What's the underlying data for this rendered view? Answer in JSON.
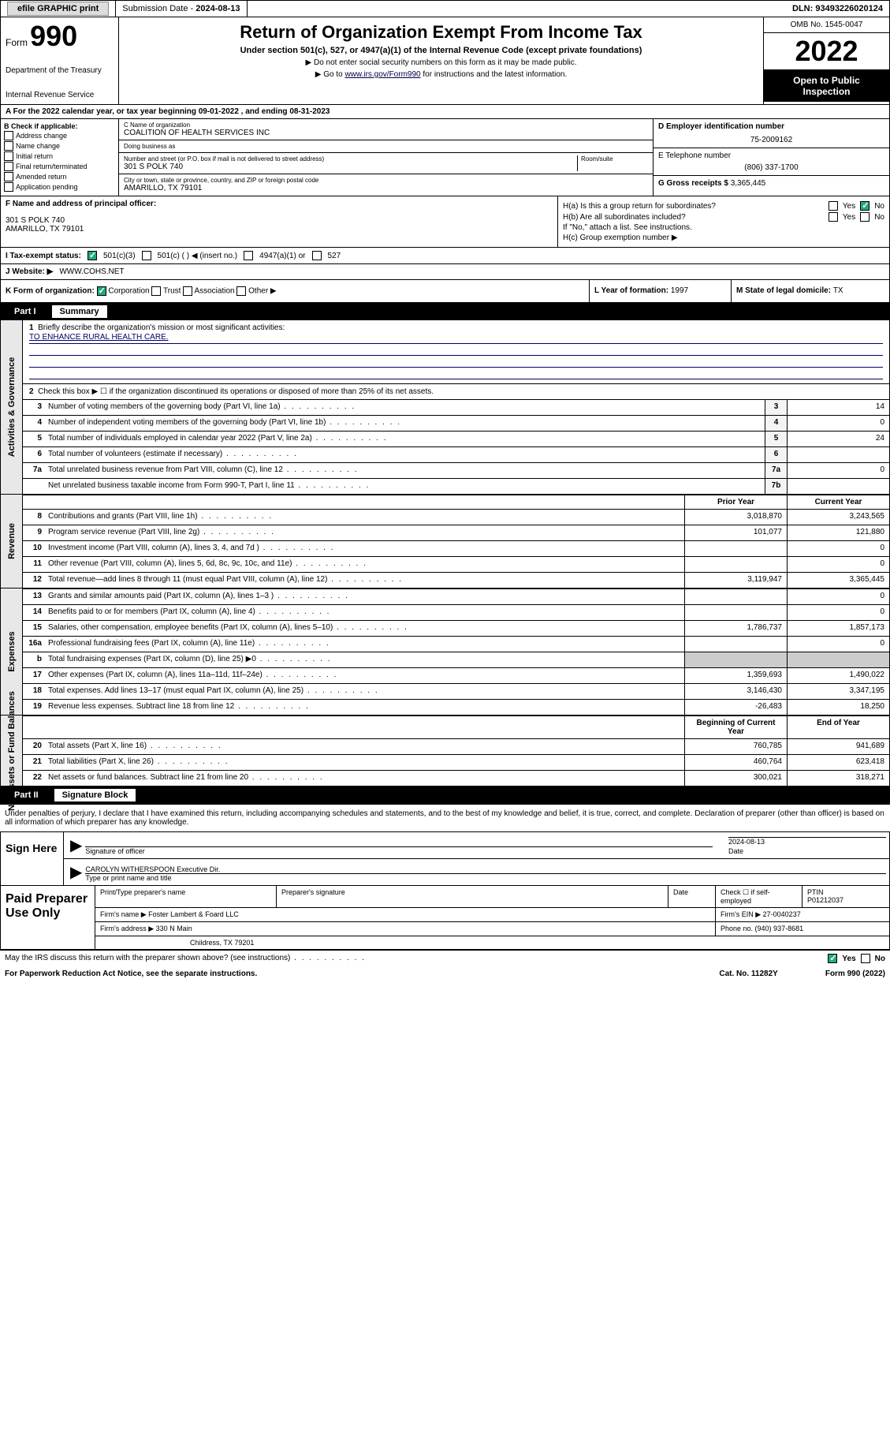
{
  "topbar": {
    "efile": "efile GRAPHIC print",
    "subdate_label": "Submission Date - ",
    "subdate": "2024-08-13",
    "dln_label": "DLN: ",
    "dln": "93493226020124"
  },
  "header": {
    "form_label": "Form",
    "form_no": "990",
    "dept": "Department of the Treasury",
    "irs": "Internal Revenue Service",
    "title": "Return of Organization Exempt From Income Tax",
    "sub": "Under section 501(c), 527, or 4947(a)(1) of the Internal Revenue Code (except private foundations)",
    "note1": "▶ Do not enter social security numbers on this form as it may be made public.",
    "note2_pre": "▶ Go to ",
    "note2_link": "www.irs.gov/Form990",
    "note2_post": " for instructions and the latest information.",
    "omb": "OMB No. 1545-0047",
    "year": "2022",
    "inspect": "Open to Public Inspection"
  },
  "period": {
    "text": "A For the 2022 calendar year, or tax year beginning 09-01-2022   , and ending 08-31-2023"
  },
  "boxB": {
    "label": "B Check if applicable:",
    "items": [
      "Address change",
      "Name change",
      "Initial return",
      "Final return/terminated",
      "Amended return",
      "Application pending"
    ]
  },
  "boxC": {
    "name_label": "C Name of organization",
    "name": "COALITION OF HEALTH SERVICES INC",
    "dba_label": "Doing business as",
    "addr_label": "Number and street (or P.O. box if mail is not delivered to street address)",
    "room_label": "Room/suite",
    "addr": "301 S POLK 740",
    "city_label": "City or town, state or province, country, and ZIP or foreign postal code",
    "city": "AMARILLO, TX  79101"
  },
  "boxD": {
    "label": "D Employer identification number",
    "value": "75-2009162"
  },
  "boxE": {
    "label": "E Telephone number",
    "value": "(806) 337-1700"
  },
  "boxG": {
    "label": "G Gross receipts $ ",
    "value": "3,365,445"
  },
  "boxF": {
    "label": "F  Name and address of principal officer:",
    "addr1": "301 S POLK 740",
    "addr2": "AMARILLO, TX  79101"
  },
  "boxH": {
    "ha": "H(a)  Is this a group return for subordinates?",
    "hb": "H(b)  Are all subordinates included?",
    "hb_note": "If \"No,\" attach a list. See instructions.",
    "hc": "H(c)  Group exemption number ▶",
    "yes": "Yes",
    "no": "No"
  },
  "rowI": {
    "label": "I   Tax-exempt status:",
    "opt1": "501(c)(3)",
    "opt2": "501(c) (  ) ◀ (insert no.)",
    "opt3": "4947(a)(1) or",
    "opt4": "527"
  },
  "rowJ": {
    "label": "J   Website: ▶",
    "value": "WWW.COHS.NET"
  },
  "rowK": {
    "label": "K Form of organization:",
    "opts": [
      "Corporation",
      "Trust",
      "Association",
      "Other ▶"
    ]
  },
  "rowL": {
    "label": "L Year of formation: ",
    "value": "1997"
  },
  "rowM": {
    "label": "M State of legal domicile: ",
    "value": "TX"
  },
  "partI": {
    "num": "Part I",
    "title": "Summary"
  },
  "summary": {
    "q1": "Briefly describe the organization's mission or most significant activities:",
    "mission": "TO ENHANCE RURAL HEALTH CARE.",
    "q2": "Check this box ▶ ☐  if the organization discontinued its operations or disposed of more than 25% of its net assets.",
    "rows_gov": [
      {
        "n": "3",
        "d": "Number of voting members of the governing body (Part VI, line 1a)",
        "box": "3",
        "v": "14"
      },
      {
        "n": "4",
        "d": "Number of independent voting members of the governing body (Part VI, line 1b)",
        "box": "4",
        "v": "0"
      },
      {
        "n": "5",
        "d": "Total number of individuals employed in calendar year 2022 (Part V, line 2a)",
        "box": "5",
        "v": "24"
      },
      {
        "n": "6",
        "d": "Total number of volunteers (estimate if necessary)",
        "box": "6",
        "v": ""
      },
      {
        "n": "7a",
        "d": "Total unrelated business revenue from Part VIII, column (C), line 12",
        "box": "7a",
        "v": "0"
      },
      {
        "n": "",
        "d": "Net unrelated business taxable income from Form 990-T, Part I, line 11",
        "box": "7b",
        "v": ""
      }
    ],
    "col_prior": "Prior Year",
    "col_current": "Current Year",
    "col_begin": "Beginning of Current Year",
    "col_end": "End of Year",
    "rows_rev": [
      {
        "n": "8",
        "d": "Contributions and grants (Part VIII, line 1h)",
        "p": "3,018,870",
        "c": "3,243,565"
      },
      {
        "n": "9",
        "d": "Program service revenue (Part VIII, line 2g)",
        "p": "101,077",
        "c": "121,880"
      },
      {
        "n": "10",
        "d": "Investment income (Part VIII, column (A), lines 3, 4, and 7d )",
        "p": "",
        "c": "0"
      },
      {
        "n": "11",
        "d": "Other revenue (Part VIII, column (A), lines 5, 6d, 8c, 9c, 10c, and 11e)",
        "p": "",
        "c": "0"
      },
      {
        "n": "12",
        "d": "Total revenue—add lines 8 through 11 (must equal Part VIII, column (A), line 12)",
        "p": "3,119,947",
        "c": "3,365,445"
      }
    ],
    "rows_exp": [
      {
        "n": "13",
        "d": "Grants and similar amounts paid (Part IX, column (A), lines 1–3 )",
        "p": "",
        "c": "0"
      },
      {
        "n": "14",
        "d": "Benefits paid to or for members (Part IX, column (A), line 4)",
        "p": "",
        "c": "0"
      },
      {
        "n": "15",
        "d": "Salaries, other compensation, employee benefits (Part IX, column (A), lines 5–10)",
        "p": "1,786,737",
        "c": "1,857,173"
      },
      {
        "n": "16a",
        "d": "Professional fundraising fees (Part IX, column (A), line 11e)",
        "p": "",
        "c": "0"
      },
      {
        "n": "b",
        "d": "Total fundraising expenses (Part IX, column (D), line 25) ▶0",
        "p": "shaded",
        "c": "shaded"
      },
      {
        "n": "17",
        "d": "Other expenses (Part IX, column (A), lines 11a–11d, 11f–24e)",
        "p": "1,359,693",
        "c": "1,490,022"
      },
      {
        "n": "18",
        "d": "Total expenses. Add lines 13–17 (must equal Part IX, column (A), line 25)",
        "p": "3,146,430",
        "c": "3,347,195"
      },
      {
        "n": "19",
        "d": "Revenue less expenses. Subtract line 18 from line 12",
        "p": "-26,483",
        "c": "18,250"
      }
    ],
    "rows_net": [
      {
        "n": "20",
        "d": "Total assets (Part X, line 16)",
        "p": "760,785",
        "c": "941,689"
      },
      {
        "n": "21",
        "d": "Total liabilities (Part X, line 26)",
        "p": "460,764",
        "c": "623,418"
      },
      {
        "n": "22",
        "d": "Net assets or fund balances. Subtract line 21 from line 20",
        "p": "300,021",
        "c": "318,271"
      }
    ]
  },
  "sides": {
    "gov": "Activities & Governance",
    "rev": "Revenue",
    "exp": "Expenses",
    "net": "Net Assets or Fund Balances"
  },
  "partII": {
    "num": "Part II",
    "title": "Signature Block"
  },
  "sig": {
    "declare": "Under penalties of perjury, I declare that I have examined this return, including accompanying schedules and statements, and to the best of my knowledge and belief, it is true, correct, and complete. Declaration of preparer (other than officer) is based on all information of which preparer has any knowledge.",
    "sign_here": "Sign Here",
    "sig_officer": "Signature of officer",
    "date_label": "Date",
    "date": "2024-08-13",
    "officer_name": "CAROLYN WITHERSPOON  Executive Dir.",
    "name_label": "Type or print name and title"
  },
  "prep": {
    "title": "Paid Preparer Use Only",
    "h_name": "Print/Type preparer's name",
    "h_sig": "Preparer's signature",
    "h_date": "Date",
    "h_check": "Check ☐ if self-employed",
    "h_ptin": "PTIN",
    "ptin": "P01212037",
    "firm_name_l": "Firm's name   ▶",
    "firm_name": "Foster Lambert & Foard LLC",
    "firm_ein_l": "Firm's EIN ▶",
    "firm_ein": "27-0040237",
    "firm_addr_l": "Firm's address ▶",
    "firm_addr": "330 N Main",
    "firm_city": "Childress, TX  79201",
    "phone_l": "Phone no. ",
    "phone": "(940) 937-8681"
  },
  "footer": {
    "discuss": "May the IRS discuss this return with the preparer shown above? (see instructions)",
    "paperwork": "For Paperwork Reduction Act Notice, see the separate instructions.",
    "cat": "Cat. No. 11282Y",
    "formref": "Form 990 (2022)",
    "yes": "Yes",
    "no": "No"
  }
}
